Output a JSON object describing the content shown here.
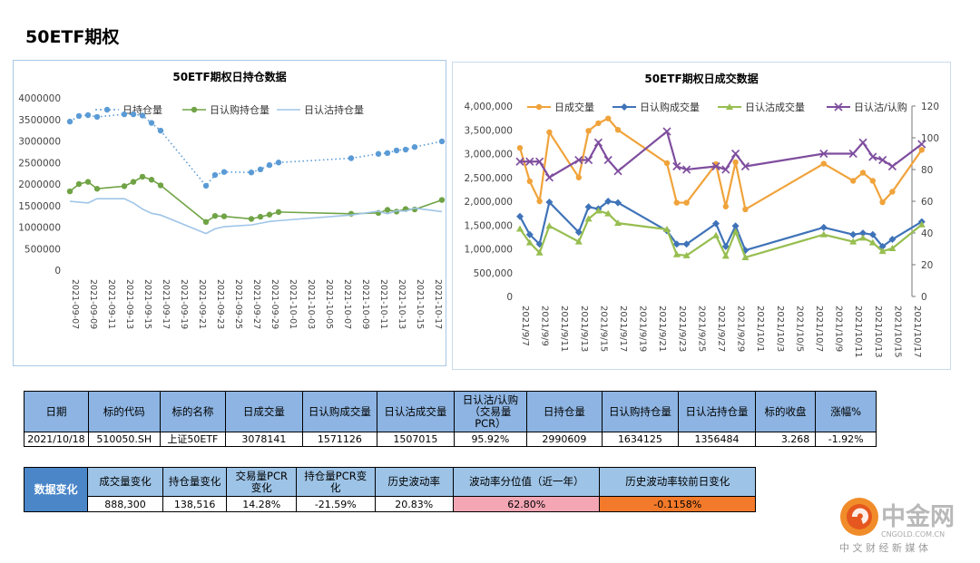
{
  "page": {
    "title": "50ETF期权"
  },
  "chart_data": [
    {
      "type": "line",
      "title": "50ETF期权日持仓数据",
      "x": [
        "2021-09-07",
        "2021-09-08",
        "2021-09-09",
        "2021-09-10",
        "2021-09-13",
        "2021-09-14",
        "2021-09-15",
        "2021-09-16",
        "2021-09-17",
        "2021-09-22",
        "2021-09-23",
        "2021-09-24",
        "2021-09-27",
        "2021-09-28",
        "2021-09-29",
        "2021-09-30",
        "2021-10-08",
        "2021-10-11",
        "2021-10-12",
        "2021-10-13",
        "2021-10-14",
        "2021-10-15",
        "2021-10-18"
      ],
      "x_tick_labels": [
        "2021-09-07",
        "2021-09-09",
        "2021-09-11",
        "2021-09-13",
        "2021-09-15",
        "2021-09-17",
        "2021-09-19",
        "2021-09-21",
        "2021-09-23",
        "2021-09-25",
        "2021-09-27",
        "2021-09-29",
        "2021-10-01",
        "2021-10-03",
        "2021-10-05",
        "2021-10-07",
        "2021-10-09",
        "2021-10-11",
        "2021-10-13",
        "2021-10-15",
        "2021-10-17"
      ],
      "series": [
        {
          "name": "日持仓量",
          "color": "#5b9bd5",
          "marker": "circle",
          "line": "dotted",
          "values": [
            3450000,
            3580000,
            3600000,
            3560000,
            3620000,
            3620000,
            3590000,
            3420000,
            3240000,
            1960000,
            2210000,
            2280000,
            2270000,
            2340000,
            2440000,
            2500000,
            2600000,
            2700000,
            2720000,
            2780000,
            2800000,
            2860000,
            2990000
          ]
        },
        {
          "name": "日认购持仓量",
          "color": "#70a345",
          "marker": "circle",
          "line": "solid",
          "values": [
            1830000,
            2000000,
            2050000,
            1890000,
            1950000,
            2050000,
            2170000,
            2100000,
            1970000,
            1120000,
            1260000,
            1250000,
            1190000,
            1240000,
            1290000,
            1350000,
            1310000,
            1330000,
            1400000,
            1360000,
            1420000,
            1410000,
            1630000
          ]
        },
        {
          "name": "日认沽持仓量",
          "color": "#9fc5e8",
          "marker": "none",
          "line": "solid",
          "values": [
            1600000,
            1580000,
            1560000,
            1660000,
            1660000,
            1560000,
            1420000,
            1320000,
            1280000,
            850000,
            960000,
            1010000,
            1050000,
            1090000,
            1130000,
            1150000,
            1280000,
            1370000,
            1310000,
            1380000,
            1370000,
            1440000,
            1360000
          ]
        }
      ],
      "y_tick_labels": [
        "0",
        "500000",
        "1000000",
        "1500000",
        "2000000",
        "2500000",
        "3000000",
        "3500000",
        "4000000"
      ],
      "ylim": [
        0,
        4000000
      ],
      "legend": "top"
    },
    {
      "type": "line",
      "title": "50ETF期权日成交数据",
      "x": [
        "2021/9/7",
        "2021/9/8",
        "2021/9/9",
        "2021/9/10",
        "2021/9/13",
        "2021/9/14",
        "2021/9/15",
        "2021/9/16",
        "2021/9/17",
        "2021/9/22",
        "2021/9/23",
        "2021/9/24",
        "2021/9/27",
        "2021/9/28",
        "2021/9/29",
        "2021/9/30",
        "2021/10/8",
        "2021/10/11",
        "2021/10/12",
        "2021/10/13",
        "2021/10/14",
        "2021/10/15",
        "2021/10/18"
      ],
      "x_tick_labels": [
        "2021/9/7",
        "2021/9/9",
        "2021/9/11",
        "2021/9/13",
        "2021/9/15",
        "2021/9/17",
        "2021/9/19",
        "2021/9/21",
        "2021/9/23",
        "2021/9/25",
        "2021/9/27",
        "2021/9/29",
        "2021/10/1",
        "2021/10/3",
        "2021/10/5",
        "2021/10/7",
        "2021/10/9",
        "2021/10/11",
        "2021/10/13",
        "2021/10/15",
        "2021/10/17"
      ],
      "series": [
        {
          "name": "日成交量",
          "color": "#f0a33b",
          "marker": "circle",
          "axis": "left",
          "values": [
            3120000,
            2420000,
            2000000,
            3450000,
            2500000,
            3480000,
            3640000,
            3740000,
            3500000,
            2800000,
            1970000,
            1970000,
            2780000,
            1890000,
            2820000,
            1830000,
            2790000,
            2430000,
            2600000,
            2430000,
            1980000,
            2200000,
            3080000
          ]
        },
        {
          "name": "日认购成交量",
          "color": "#3f73b8",
          "marker": "diamond",
          "axis": "left",
          "values": [
            1680000,
            1300000,
            1100000,
            1980000,
            1350000,
            1880000,
            1840000,
            2000000,
            1970000,
            1380000,
            1100000,
            1100000,
            1530000,
            1050000,
            1480000,
            970000,
            1450000,
            1300000,
            1330000,
            1300000,
            1050000,
            1200000,
            1570000
          ]
        },
        {
          "name": "日认沽成交量",
          "color": "#97be50",
          "marker": "triangle",
          "axis": "left",
          "values": [
            1420000,
            1130000,
            920000,
            1480000,
            1150000,
            1630000,
            1800000,
            1740000,
            1540000,
            1410000,
            880000,
            860000,
            1280000,
            850000,
            1360000,
            820000,
            1300000,
            1150000,
            1230000,
            1130000,
            950000,
            1010000,
            1510000
          ]
        },
        {
          "name": "日认沽/认购",
          "color": "#7e4d9e",
          "marker": "x",
          "axis": "right",
          "values": [
            85,
            85,
            85,
            75,
            86,
            86,
            97,
            86,
            79,
            104,
            82,
            80,
            82,
            80,
            90,
            82,
            90,
            90,
            97,
            88,
            86,
            82,
            96
          ]
        }
      ],
      "y_left_tick_labels": [
        "0",
        "500,000",
        "1,000,000",
        "1,500,000",
        "2,000,000",
        "2,500,000",
        "3,000,000",
        "3,500,000",
        "4,000,000"
      ],
      "y_right_tick_labels": [
        "0",
        "20",
        "40",
        "60",
        "80",
        "100",
        "120"
      ],
      "ylim_left": [
        0,
        4000000
      ],
      "ylim_right": [
        0,
        120
      ],
      "legend": "top"
    }
  ],
  "table1": {
    "headers": [
      "日期",
      "标的代码",
      "标的名称",
      "日成交量",
      "日认购成交量",
      "日认沽成交量",
      "日认沽/认购\n（交易量\nPCR）",
      "日持仓量",
      "日认购持仓量",
      "日认沽持仓量",
      "标的收盘",
      "涨幅%"
    ],
    "values": [
      "2021/10/18",
      "510050.SH",
      "上证50ETF",
      "3078141",
      "1571126",
      "1507015",
      "95.92%",
      "2990609",
      "1634125",
      "1356484",
      "3.268",
      "-1.92%"
    ]
  },
  "table2": {
    "label": "数据变化",
    "headers": [
      "成交量变化",
      "持仓量变化",
      "交易量PCR\n变化",
      "持仓量PCR变\n化",
      "历史波动率",
      "波动率分位值（近一年）",
      "历史波动率较前日变化"
    ],
    "values": [
      "888,300",
      "138,516",
      "14.28%",
      "-21.59%",
      "20.83%",
      "62.80%",
      "-0.1158%"
    ]
  },
  "logo": {
    "name": "中金网",
    "url_text": "CNGOLD.COM.CN",
    "tagline": "中 文 财 经 新 媒 体"
  }
}
